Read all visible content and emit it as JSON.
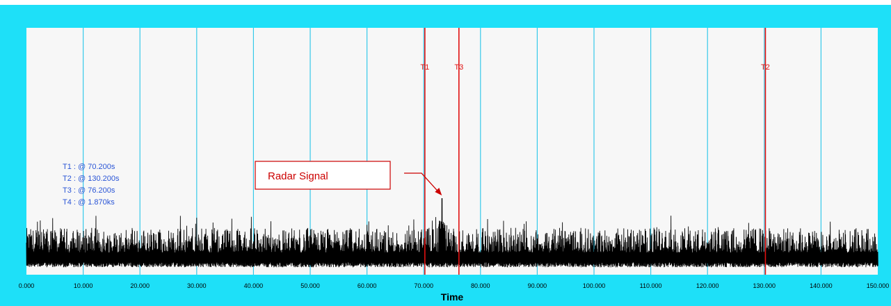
{
  "colors": {
    "frame": "#1ee0f8",
    "plot_bg": "#f7f7f7",
    "grid": "#35c9ea",
    "cursor": "#e01010",
    "signal": "#000000",
    "readout_text": "#2a55d6",
    "annotation": "#cc0000"
  },
  "chart_data": {
    "type": "line",
    "title": "",
    "xlabel": "Time",
    "ylabel": "",
    "xlim": [
      0,
      150
    ],
    "grid": true,
    "x_tick_values": [
      0,
      10,
      20,
      30,
      40,
      50,
      60,
      70,
      80,
      90,
      100,
      110,
      120,
      130,
      140,
      150
    ],
    "x_tick_labels": [
      "0.000",
      "10.000",
      "20.000",
      "30.000",
      "40.000",
      "50.000",
      "60.000",
      "70.000",
      "80.000",
      "90.000",
      "100.000",
      "110.000",
      "120.000",
      "130.000",
      "140.000",
      "150.000"
    ],
    "series": [
      {
        "noise_floor": 0.05,
        "typical_peak": 0.19,
        "max_noise_peak": 0.24,
        "spike": {
          "x": 73.2,
          "y": 0.31
        }
      }
    ],
    "cursors": [
      {
        "label": "T1",
        "x": 70.2
      },
      {
        "label": "T3",
        "x": 76.2
      },
      {
        "label": "T2",
        "x": 130.2
      }
    ],
    "cursor_readouts": [
      "T1 : @ 70.200s",
      "T2 : @ 130.200s",
      "T3 : @ 76.200s",
      "T4 : @ 1.870ks"
    ],
    "annotations": [
      {
        "text": "Radar Signal",
        "target_x": 73.2
      }
    ]
  }
}
